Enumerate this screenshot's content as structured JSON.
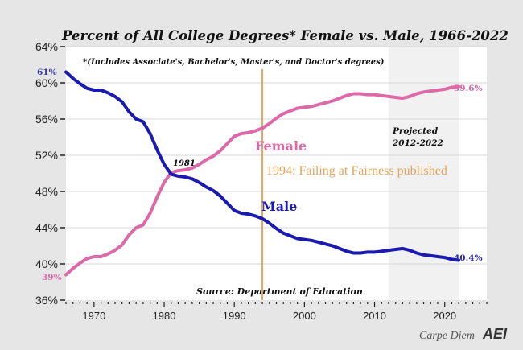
{
  "chart_data": {
    "type": "line",
    "title": "Percent of All College Degrees* Female vs. Male, 1966-2022",
    "subtitle": "*(Includes Associate's, Bachelor's, Master's, and Doctor's degrees)",
    "xlabel": "",
    "ylabel": "",
    "xlim": [
      1966,
      2026
    ],
    "ylim": [
      36,
      64
    ],
    "grid": true,
    "x_ticks": [
      1970,
      1980,
      1990,
      2000,
      2010,
      2020
    ],
    "y_ticks": [
      36,
      40,
      44,
      48,
      52,
      56,
      60,
      64
    ],
    "y_tick_labels": [
      "36%",
      "40%",
      "44%",
      "48%",
      "52%",
      "56%",
      "60%",
      "64%"
    ],
    "x": [
      1966,
      1967,
      1968,
      1969,
      1970,
      1971,
      1972,
      1973,
      1974,
      1975,
      1976,
      1977,
      1978,
      1979,
      1980,
      1981,
      1982,
      1983,
      1984,
      1985,
      1986,
      1987,
      1988,
      1989,
      1990,
      1991,
      1992,
      1993,
      1994,
      1995,
      1996,
      1997,
      1998,
      1999,
      2000,
      2001,
      2002,
      2003,
      2004,
      2005,
      2006,
      2007,
      2008,
      2009,
      2010,
      2011,
      2012,
      2013,
      2014,
      2015,
      2016,
      2017,
      2018,
      2019,
      2020,
      2021,
      2022
    ],
    "series": [
      {
        "name": "Female",
        "color": "#dc6aa8",
        "values": [
          38.8,
          39.5,
          40.1,
          40.6,
          40.8,
          40.8,
          41.1,
          41.5,
          42.1,
          43.2,
          44.0,
          44.3,
          45.6,
          47.4,
          49.0,
          50.1,
          50.3,
          50.4,
          50.6,
          51.0,
          51.5,
          51.9,
          52.5,
          53.3,
          54.1,
          54.4,
          54.5,
          54.7,
          55.0,
          55.5,
          56.1,
          56.6,
          56.9,
          57.2,
          57.3,
          57.4,
          57.6,
          57.8,
          58.0,
          58.3,
          58.6,
          58.8,
          58.8,
          58.7,
          58.7,
          58.6,
          58.5,
          58.4,
          58.3,
          58.5,
          58.8,
          59.0,
          59.1,
          59.2,
          59.3,
          59.5,
          59.6
        ]
      },
      {
        "name": "Male",
        "color": "#1a1aae",
        "values": [
          61.2,
          60.5,
          59.9,
          59.4,
          59.2,
          59.2,
          58.9,
          58.5,
          57.9,
          56.8,
          56.0,
          55.7,
          54.4,
          52.6,
          51.0,
          49.9,
          49.7,
          49.6,
          49.4,
          49.0,
          48.5,
          48.1,
          47.5,
          46.7,
          45.9,
          45.6,
          45.5,
          45.3,
          45.0,
          44.5,
          43.9,
          43.4,
          43.1,
          42.8,
          42.7,
          42.6,
          42.4,
          42.2,
          42.0,
          41.7,
          41.4,
          41.2,
          41.2,
          41.3,
          41.3,
          41.4,
          41.5,
          41.6,
          41.7,
          41.5,
          41.2,
          41.0,
          40.9,
          40.8,
          40.7,
          40.5,
          40.4
        ]
      }
    ],
    "end_labels": {
      "female_start": "39%",
      "male_start": "61%",
      "female_end": "59.6%",
      "male_end": "40.4%"
    },
    "annotations": {
      "crossover_label": "1981",
      "crossover_year": 1981,
      "event_year": 1994,
      "event_label": "1994:  Failing at Fairness published",
      "event_color": "#e6a35a",
      "female_label": "Female",
      "male_label": "Male",
      "projected_line1": "Projected",
      "projected_line2": "2012-2022",
      "projected_range": [
        2012,
        2022
      ],
      "source": "Source: Department of Education"
    }
  },
  "footer": {
    "brand": "Carpe Diem",
    "logo": "AEI"
  }
}
